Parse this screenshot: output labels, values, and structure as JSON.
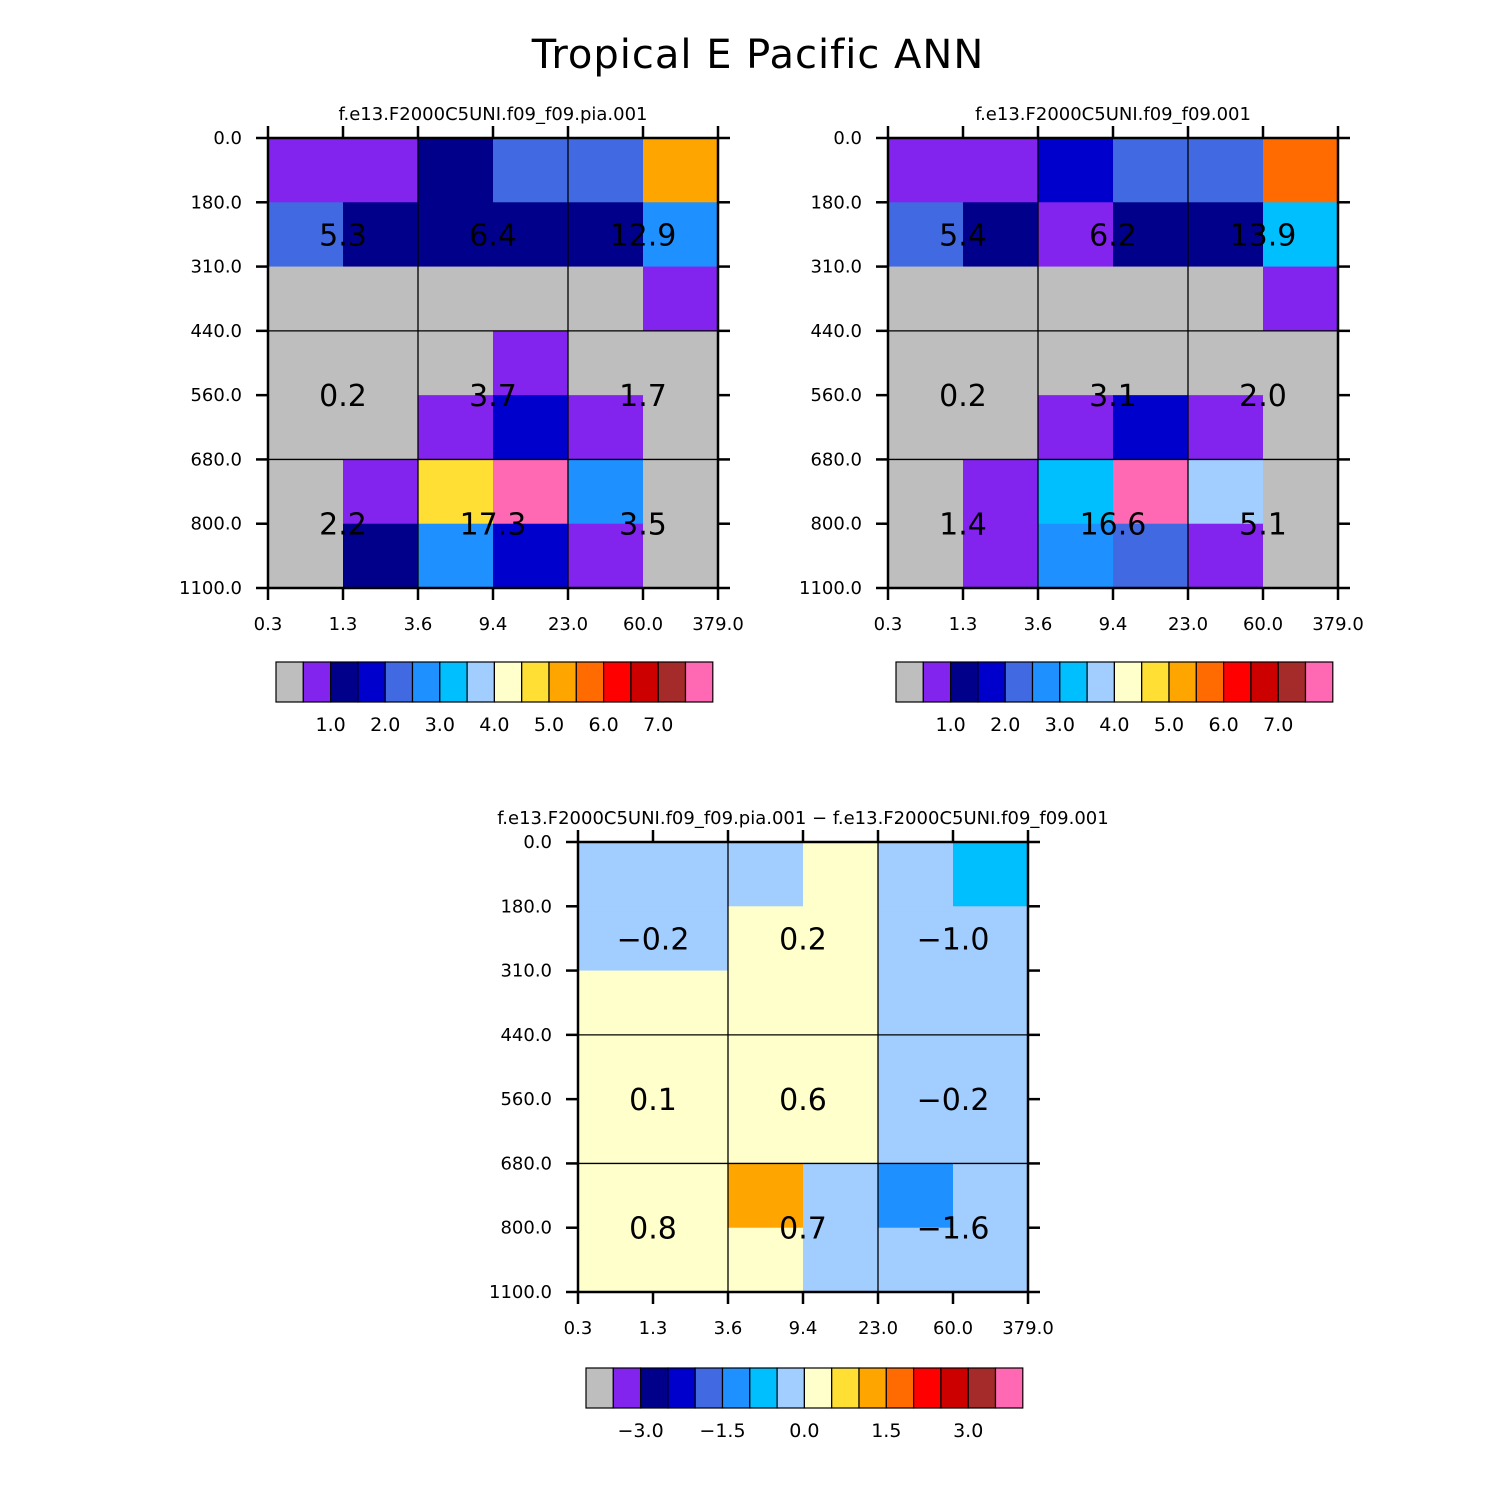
{
  "title": "Tropical E Pacific ANN",
  "colors": {
    "levels13": [
      "#bebebe",
      "#8323ee",
      "#00008b",
      "#0000cd",
      "#4169e1",
      "#1e90ff",
      "#00bfff",
      "#a2cdff",
      "#ffffcc",
      "#ffdf33",
      "#ffa500",
      "#ff6b00",
      "#ff0000",
      "#cd0000",
      "#a52a2a",
      "#ff69b4"
    ]
  },
  "chart_data": [
    {
      "type": "heatmap",
      "name": "panel-pia",
      "title": "f.e13.F2000C5UNI.f09_f09.pia.001",
      "x_ticks": [
        "0.3",
        "1.3",
        "3.6",
        "9.4",
        "23.0",
        "60.0",
        "379.0"
      ],
      "y_ticks": [
        "0.0",
        "180.0",
        "310.0",
        "440.0",
        "560.0",
        "680.0",
        "800.0",
        "1100.0"
      ],
      "color_index_grid": [
        [
          1,
          1,
          2,
          4,
          4,
          10
        ],
        [
          4,
          2,
          2,
          2,
          2,
          5
        ],
        [
          0,
          0,
          0,
          0,
          0,
          1
        ],
        [
          0,
          0,
          0,
          1,
          0,
          0
        ],
        [
          0,
          0,
          1,
          3,
          1,
          0
        ],
        [
          0,
          1,
          9,
          15,
          5,
          0
        ],
        [
          0,
          2,
          5,
          3,
          1,
          0
        ]
      ],
      "block_values": [
        [
          "5.3",
          "6.4",
          "12.9"
        ],
        [
          "0.2",
          "3.7",
          "1.7"
        ],
        [
          "2.2",
          "17.3",
          "3.5"
        ]
      ],
      "colorbar": {
        "labels": [
          "1.0",
          "2.0",
          "3.0",
          "4.0",
          "5.0",
          "6.0",
          "7.0"
        ]
      }
    },
    {
      "type": "heatmap",
      "name": "panel-control",
      "title": "f.e13.F2000C5UNI.f09_f09.001",
      "x_ticks": [
        "0.3",
        "1.3",
        "3.6",
        "9.4",
        "23.0",
        "60.0",
        "379.0"
      ],
      "y_ticks": [
        "0.0",
        "180.0",
        "310.0",
        "440.0",
        "560.0",
        "680.0",
        "800.0",
        "1100.0"
      ],
      "color_index_grid": [
        [
          1,
          1,
          3,
          4,
          4,
          11
        ],
        [
          4,
          2,
          1,
          2,
          2,
          6
        ],
        [
          0,
          0,
          0,
          0,
          0,
          1
        ],
        [
          0,
          0,
          0,
          0,
          0,
          0
        ],
        [
          0,
          0,
          1,
          3,
          1,
          0
        ],
        [
          0,
          1,
          6,
          15,
          7,
          0
        ],
        [
          0,
          1,
          5,
          4,
          1,
          0
        ]
      ],
      "block_values": [
        [
          "5.4",
          "6.2",
          "13.9"
        ],
        [
          "0.2",
          "3.1",
          "2.0"
        ],
        [
          "1.4",
          "16.6",
          "5.1"
        ]
      ],
      "colorbar": {
        "labels": [
          "1.0",
          "2.0",
          "3.0",
          "4.0",
          "5.0",
          "6.0",
          "7.0"
        ]
      }
    },
    {
      "type": "heatmap",
      "name": "panel-diff",
      "title": "f.e13.F2000C5UNI.f09_f09.pia.001 − f.e13.F2000C5UNI.f09_f09.001",
      "x_ticks": [
        "0.3",
        "1.3",
        "3.6",
        "9.4",
        "23.0",
        "60.0",
        "379.0"
      ],
      "y_ticks": [
        "0.0",
        "180.0",
        "310.0",
        "440.0",
        "560.0",
        "680.0",
        "800.0",
        "1100.0"
      ],
      "color_index_grid": [
        [
          7,
          7,
          7,
          8,
          7,
          6
        ],
        [
          7,
          7,
          8,
          8,
          7,
          7
        ],
        [
          8,
          8,
          8,
          8,
          7,
          7
        ],
        [
          8,
          8,
          8,
          8,
          7,
          7
        ],
        [
          8,
          8,
          8,
          8,
          7,
          7
        ],
        [
          8,
          8,
          10,
          7,
          5,
          7
        ],
        [
          8,
          8,
          8,
          7,
          7,
          7
        ]
      ],
      "block_values": [
        [
          "−0.2",
          "0.2",
          "−1.0"
        ],
        [
          "0.1",
          "0.6",
          "−0.2"
        ],
        [
          "0.8",
          "0.7",
          "−1.6"
        ]
      ],
      "colorbar": {
        "labels": [
          "−3.0",
          "−1.5",
          "0.0",
          "1.5",
          "3.0"
        ]
      }
    }
  ]
}
